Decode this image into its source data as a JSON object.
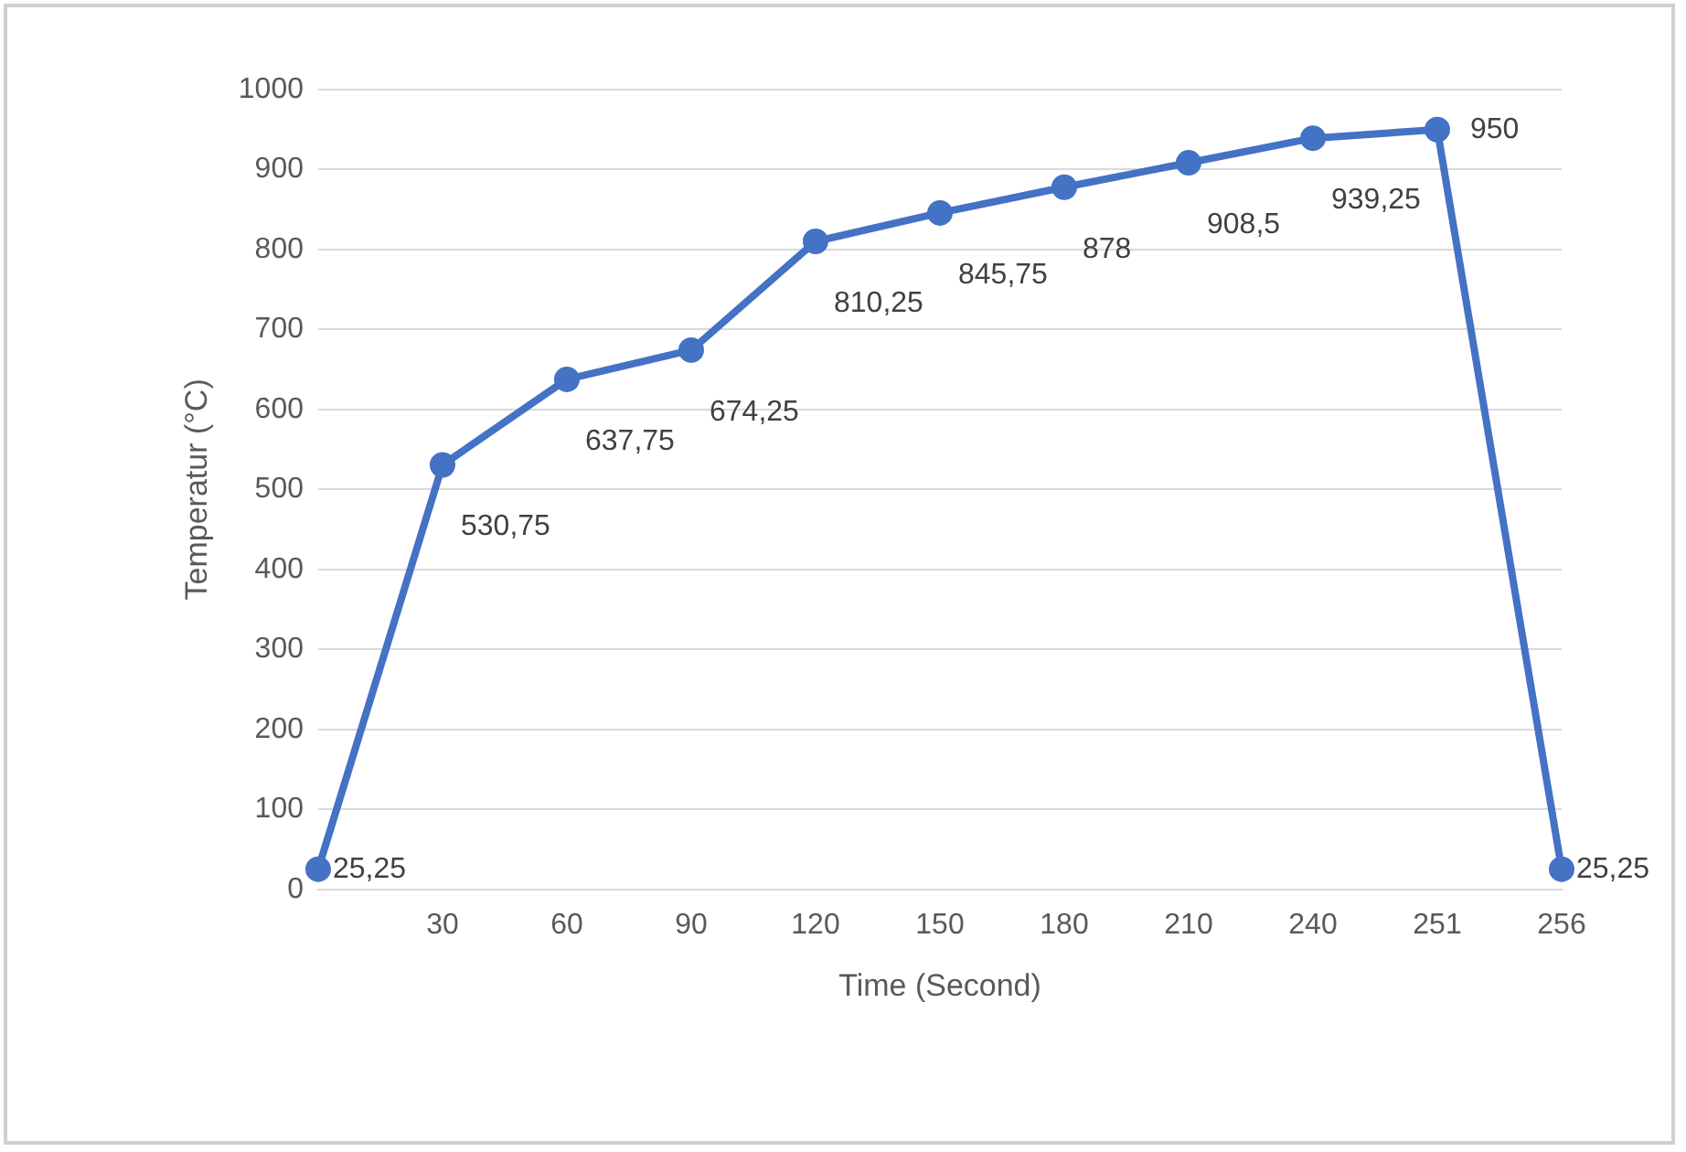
{
  "chart_data": {
    "type": "line",
    "xlabel": "Time (Second)",
    "ylabel": "Temperatur (°C)",
    "categories": [
      null,
      "30",
      "60",
      "90",
      "120",
      "150",
      "180",
      "210",
      "240",
      "251",
      "256"
    ],
    "series": [
      {
        "color": "#4472c4",
        "values": [
          25.25,
          530.75,
          637.75,
          674.25,
          810.25,
          845.75,
          878,
          908.5,
          939.25,
          950,
          25.25
        ],
        "value_labels": [
          "25,25",
          "530,75",
          "637,75",
          "674,25",
          "810,25",
          "845,75",
          "878",
          "908,5",
          "939,25",
          "950",
          "25,25"
        ]
      }
    ],
    "ylim": [
      0,
      1000
    ],
    "yticks": [
      0,
      100,
      200,
      300,
      400,
      500,
      600,
      700,
      800,
      900,
      1000
    ],
    "grid": "y",
    "legend": false,
    "marker": "circle",
    "line_style": "solid"
  }
}
